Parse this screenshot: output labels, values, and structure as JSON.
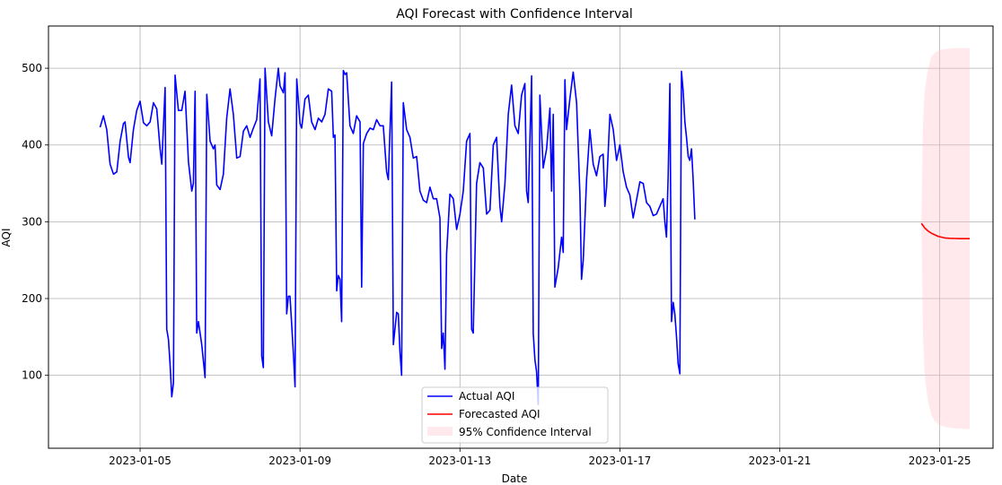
{
  "chart_data": {
    "type": "line",
    "title": "AQI Forecast with Confidence Interval",
    "xlabel": "Date",
    "ylabel": "AQI",
    "x_type": "datetime",
    "xlim": [
      "2023-01-02T17:00",
      "2023-01-26T08:00"
    ],
    "ylim": [
      5,
      555
    ],
    "x_ticks": [
      "2023-01-05",
      "2023-01-09",
      "2023-01-13",
      "2023-01-17",
      "2023-01-21",
      "2023-01-25"
    ],
    "y_ticks": [
      100,
      200,
      300,
      400,
      500
    ],
    "grid": true,
    "legend_position": "lower-center",
    "series": [
      {
        "name": "Actual AQI",
        "color": "#0000ff",
        "points": [
          [
            "2023-01-04T00:00",
            423
          ],
          [
            "2023-01-04T02:00",
            438
          ],
          [
            "2023-01-04T04:00",
            420
          ],
          [
            "2023-01-04T06:00",
            375
          ],
          [
            "2023-01-04T08:00",
            362
          ],
          [
            "2023-01-04T10:00",
            365
          ],
          [
            "2023-01-04T12:00",
            405
          ],
          [
            "2023-01-04T14:00",
            428
          ],
          [
            "2023-01-04T15:00",
            430
          ],
          [
            "2023-01-04T17:00",
            384
          ],
          [
            "2023-01-04T18:00",
            377
          ],
          [
            "2023-01-04T20:00",
            420
          ],
          [
            "2023-01-04T22:00",
            445
          ],
          [
            "2023-01-05T00:00",
            457
          ],
          [
            "2023-01-05T02:00",
            429
          ],
          [
            "2023-01-05T04:00",
            425
          ],
          [
            "2023-01-05T06:00",
            430
          ],
          [
            "2023-01-05T08:00",
            455
          ],
          [
            "2023-01-05T10:00",
            447
          ],
          [
            "2023-01-05T12:00",
            395
          ],
          [
            "2023-01-05T13:00",
            375
          ],
          [
            "2023-01-05T15:00",
            475
          ],
          [
            "2023-01-05T16:00",
            160
          ],
          [
            "2023-01-05T17:00",
            147
          ],
          [
            "2023-01-05T18:00",
            115
          ],
          [
            "2023-01-05T19:00",
            72
          ],
          [
            "2023-01-05T20:00",
            90
          ],
          [
            "2023-01-05T21:00",
            491
          ],
          [
            "2023-01-05T23:00",
            445
          ],
          [
            "2023-01-06T01:00",
            445
          ],
          [
            "2023-01-06T03:00",
            470
          ],
          [
            "2023-01-06T05:00",
            378
          ],
          [
            "2023-01-06T07:00",
            340
          ],
          [
            "2023-01-06T08:00",
            350
          ],
          [
            "2023-01-06T09:00",
            470
          ],
          [
            "2023-01-06T10:00",
            155
          ],
          [
            "2023-01-06T11:00",
            170
          ],
          [
            "2023-01-06T13:00",
            140
          ],
          [
            "2023-01-06T15:00",
            97
          ],
          [
            "2023-01-06T16:00",
            466
          ],
          [
            "2023-01-06T18:00",
            405
          ],
          [
            "2023-01-06T20:00",
            395
          ],
          [
            "2023-01-06T21:00",
            400
          ],
          [
            "2023-01-06T22:00",
            348
          ],
          [
            "2023-01-07T00:00",
            342
          ],
          [
            "2023-01-07T02:00",
            362
          ],
          [
            "2023-01-07T04:00",
            435
          ],
          [
            "2023-01-07T06:00",
            473
          ],
          [
            "2023-01-07T08:00",
            440
          ],
          [
            "2023-01-07T10:00",
            383
          ],
          [
            "2023-01-07T12:00",
            385
          ],
          [
            "2023-01-07T14:00",
            418
          ],
          [
            "2023-01-07T16:00",
            425
          ],
          [
            "2023-01-07T18:00",
            410
          ],
          [
            "2023-01-07T20:00",
            422
          ],
          [
            "2023-01-07T22:00",
            433
          ],
          [
            "2023-01-08T00:00",
            486
          ],
          [
            "2023-01-08T01:00",
            125
          ],
          [
            "2023-01-08T02:00",
            110
          ],
          [
            "2023-01-08T03:00",
            500
          ],
          [
            "2023-01-08T05:00",
            430
          ],
          [
            "2023-01-08T07:00",
            412
          ],
          [
            "2023-01-08T09:00",
            460
          ],
          [
            "2023-01-08T11:00",
            500
          ],
          [
            "2023-01-08T12:00",
            477
          ],
          [
            "2023-01-08T14:00",
            468
          ],
          [
            "2023-01-08T15:00",
            494
          ],
          [
            "2023-01-08T16:00",
            180
          ],
          [
            "2023-01-08T17:00",
            203
          ],
          [
            "2023-01-08T18:00",
            203
          ],
          [
            "2023-01-08T20:00",
            130
          ],
          [
            "2023-01-08T21:00",
            85
          ],
          [
            "2023-01-08T22:00",
            486
          ],
          [
            "2023-01-09T00:00",
            428
          ],
          [
            "2023-01-09T01:00",
            422
          ],
          [
            "2023-01-09T03:00",
            460
          ],
          [
            "2023-01-09T05:00",
            465
          ],
          [
            "2023-01-09T07:00",
            430
          ],
          [
            "2023-01-09T09:00",
            420
          ],
          [
            "2023-01-09T11:00",
            435
          ],
          [
            "2023-01-09T13:00",
            430
          ],
          [
            "2023-01-09T15:00",
            440
          ],
          [
            "2023-01-09T17:00",
            473
          ],
          [
            "2023-01-09T19:00",
            470
          ],
          [
            "2023-01-09T20:00",
            410
          ],
          [
            "2023-01-09T21:00",
            413
          ],
          [
            "2023-01-09T22:00",
            210
          ],
          [
            "2023-01-09T23:00",
            230
          ],
          [
            "2023-01-10T00:00",
            225
          ],
          [
            "2023-01-10T01:00",
            170
          ],
          [
            "2023-01-10T02:00",
            497
          ],
          [
            "2023-01-10T03:00",
            492
          ],
          [
            "2023-01-10T04:00",
            494
          ],
          [
            "2023-01-10T06:00",
            425
          ],
          [
            "2023-01-10T08:00",
            415
          ],
          [
            "2023-01-10T10:00",
            438
          ],
          [
            "2023-01-10T12:00",
            430
          ],
          [
            "2023-01-10T13:00",
            215
          ],
          [
            "2023-01-10T14:00",
            402
          ],
          [
            "2023-01-10T16:00",
            415
          ],
          [
            "2023-01-10T18:00",
            422
          ],
          [
            "2023-01-10T20:00",
            420
          ],
          [
            "2023-01-10T22:00",
            433
          ],
          [
            "2023-01-11T00:00",
            425
          ],
          [
            "2023-01-11T02:00",
            425
          ],
          [
            "2023-01-11T04:00",
            365
          ],
          [
            "2023-01-11T05:00",
            355
          ],
          [
            "2023-01-11T07:00",
            482
          ],
          [
            "2023-01-11T08:00",
            140
          ],
          [
            "2023-01-11T10:00",
            182
          ],
          [
            "2023-01-11T11:00",
            180
          ],
          [
            "2023-01-11T12:00",
            130
          ],
          [
            "2023-01-11T13:00",
            100
          ],
          [
            "2023-01-11T14:00",
            455
          ],
          [
            "2023-01-11T16:00",
            420
          ],
          [
            "2023-01-11T18:00",
            410
          ],
          [
            "2023-01-11T20:00",
            383
          ],
          [
            "2023-01-11T22:00",
            385
          ],
          [
            "2023-01-12T00:00",
            340
          ],
          [
            "2023-01-12T02:00",
            328
          ],
          [
            "2023-01-12T04:00",
            325
          ],
          [
            "2023-01-12T06:00",
            345
          ],
          [
            "2023-01-12T08:00",
            330
          ],
          [
            "2023-01-12T10:00",
            330
          ],
          [
            "2023-01-12T12:00",
            305
          ],
          [
            "2023-01-12T13:00",
            135
          ],
          [
            "2023-01-12T14:00",
            155
          ],
          [
            "2023-01-12T15:00",
            108
          ],
          [
            "2023-01-12T16:00",
            258
          ],
          [
            "2023-01-12T18:00",
            336
          ],
          [
            "2023-01-12T20:00",
            330
          ],
          [
            "2023-01-12T22:00",
            290
          ],
          [
            "2023-01-13T00:00",
            310
          ],
          [
            "2023-01-13T02:00",
            340
          ],
          [
            "2023-01-13T04:00",
            405
          ],
          [
            "2023-01-13T06:00",
            415
          ],
          [
            "2023-01-13T07:00",
            160
          ],
          [
            "2023-01-13T08:00",
            155
          ],
          [
            "2023-01-13T10:00",
            350
          ],
          [
            "2023-01-13T12:00",
            377
          ],
          [
            "2023-01-13T14:00",
            370
          ],
          [
            "2023-01-13T16:00",
            310
          ],
          [
            "2023-01-13T18:00",
            315
          ],
          [
            "2023-01-13T20:00",
            400
          ],
          [
            "2023-01-13T22:00",
            410
          ],
          [
            "2023-01-14T00:00",
            320
          ],
          [
            "2023-01-14T01:00",
            300
          ],
          [
            "2023-01-14T03:00",
            350
          ],
          [
            "2023-01-14T05:00",
            440
          ],
          [
            "2023-01-14T07:00",
            478
          ],
          [
            "2023-01-14T09:00",
            425
          ],
          [
            "2023-01-14T11:00",
            415
          ],
          [
            "2023-01-14T13:00",
            465
          ],
          [
            "2023-01-14T15:00",
            480
          ],
          [
            "2023-01-14T16:00",
            340
          ],
          [
            "2023-01-14T17:00",
            325
          ],
          [
            "2023-01-14T19:00",
            490
          ],
          [
            "2023-01-14T20:00",
            155
          ],
          [
            "2023-01-14T21:00",
            120
          ],
          [
            "2023-01-14T22:00",
            105
          ],
          [
            "2023-01-14T23:00",
            62
          ],
          [
            "2023-01-15T00:00",
            465
          ],
          [
            "2023-01-15T02:00",
            370
          ],
          [
            "2023-01-15T04:00",
            395
          ],
          [
            "2023-01-15T06:00",
            448
          ],
          [
            "2023-01-15T07:00",
            340
          ],
          [
            "2023-01-15T08:00",
            440
          ],
          [
            "2023-01-15T09:00",
            215
          ],
          [
            "2023-01-15T11:00",
            240
          ],
          [
            "2023-01-15T13:00",
            280
          ],
          [
            "2023-01-15T14:00",
            260
          ],
          [
            "2023-01-15T15:00",
            485
          ],
          [
            "2023-01-15T16:00",
            420
          ],
          [
            "2023-01-15T18:00",
            460
          ],
          [
            "2023-01-15T20:00",
            495
          ],
          [
            "2023-01-15T22:00",
            455
          ],
          [
            "2023-01-16T00:00",
            335
          ],
          [
            "2023-01-16T01:00",
            225
          ],
          [
            "2023-01-16T02:00",
            250
          ],
          [
            "2023-01-16T04:00",
            355
          ],
          [
            "2023-01-16T06:00",
            420
          ],
          [
            "2023-01-16T08:00",
            375
          ],
          [
            "2023-01-16T10:00",
            360
          ],
          [
            "2023-01-16T12:00",
            385
          ],
          [
            "2023-01-16T14:00",
            388
          ],
          [
            "2023-01-16T15:00",
            320
          ],
          [
            "2023-01-16T16:00",
            345
          ],
          [
            "2023-01-16T18:00",
            440
          ],
          [
            "2023-01-16T20:00",
            420
          ],
          [
            "2023-01-16T22:00",
            380
          ],
          [
            "2023-01-17T00:00",
            400
          ],
          [
            "2023-01-17T02:00",
            365
          ],
          [
            "2023-01-17T04:00",
            345
          ],
          [
            "2023-01-17T06:00",
            335
          ],
          [
            "2023-01-17T08:00",
            305
          ],
          [
            "2023-01-17T10:00",
            328
          ],
          [
            "2023-01-17T12:00",
            352
          ],
          [
            "2023-01-17T14:00",
            350
          ],
          [
            "2023-01-17T16:00",
            325
          ],
          [
            "2023-01-17T18:00",
            320
          ],
          [
            "2023-01-17T20:00",
            308
          ],
          [
            "2023-01-17T22:00",
            310
          ],
          [
            "2023-01-18T00:00",
            320
          ],
          [
            "2023-01-18T02:00",
            330
          ],
          [
            "2023-01-18T03:00",
            300
          ],
          [
            "2023-01-18T04:00",
            280
          ],
          [
            "2023-01-18T05:00",
            360
          ],
          [
            "2023-01-18T06:00",
            480
          ],
          [
            "2023-01-18T07:00",
            170
          ],
          [
            "2023-01-18T08:00",
            195
          ],
          [
            "2023-01-18T09:00",
            180
          ],
          [
            "2023-01-18T10:00",
            150
          ],
          [
            "2023-01-18T11:00",
            115
          ],
          [
            "2023-01-18T12:00",
            102
          ],
          [
            "2023-01-18T13:00",
            496
          ],
          [
            "2023-01-18T14:00",
            470
          ],
          [
            "2023-01-18T15:00",
            430
          ],
          [
            "2023-01-18T16:00",
            410
          ],
          [
            "2023-01-18T17:00",
            385
          ],
          [
            "2023-01-18T18:00",
            380
          ],
          [
            "2023-01-18T19:00",
            395
          ],
          [
            "2023-01-18T20:00",
            355
          ],
          [
            "2023-01-18T21:00",
            303
          ]
        ]
      },
      {
        "name": "Forecasted AQI",
        "color": "#ff0000",
        "points": [
          [
            "2023-01-24T13:00",
            298
          ],
          [
            "2023-01-24T15:00",
            292
          ],
          [
            "2023-01-24T17:00",
            288
          ],
          [
            "2023-01-24T19:00",
            285
          ],
          [
            "2023-01-24T21:00",
            283
          ],
          [
            "2023-01-24T23:00",
            281
          ],
          [
            "2023-01-25T01:00",
            280
          ],
          [
            "2023-01-25T03:00",
            279
          ],
          [
            "2023-01-25T06:00",
            278.5
          ],
          [
            "2023-01-25T09:00",
            278.2
          ],
          [
            "2023-01-25T12:00",
            278
          ],
          [
            "2023-01-25T18:00",
            278
          ]
        ]
      }
    ],
    "confidence_interval": {
      "name": "95% Confidence Interval",
      "color": "#ffc0cb",
      "points": [
        [
          "2023-01-24T13:00",
          300,
          300
        ],
        [
          "2023-01-24T14:00",
          150,
          430
        ],
        [
          "2023-01-24T15:00",
          100,
          470
        ],
        [
          "2023-01-24T17:00",
          65,
          500
        ],
        [
          "2023-01-24T19:00",
          48,
          515
        ],
        [
          "2023-01-24T21:00",
          40,
          520
        ],
        [
          "2023-01-25T00:00",
          35,
          524
        ],
        [
          "2023-01-25T03:00",
          33,
          525
        ],
        [
          "2023-01-25T08:00",
          31,
          526
        ],
        [
          "2023-01-25T18:00",
          30,
          526
        ]
      ]
    }
  }
}
